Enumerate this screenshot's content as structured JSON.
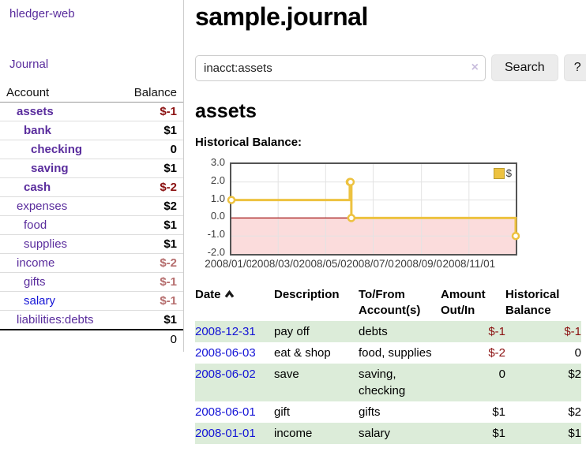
{
  "app": {
    "brand": "hledger-web"
  },
  "sidebar": {
    "journal_label": "Journal",
    "accounts": {
      "header_account": "Account",
      "header_balance": "Balance",
      "rows": [
        {
          "name": "assets",
          "balance": "$-1"
        },
        {
          "name": "bank",
          "balance": "$1"
        },
        {
          "name": "checking",
          "balance": "0"
        },
        {
          "name": "saving",
          "balance": "$1"
        },
        {
          "name": "cash",
          "balance": "$-2"
        },
        {
          "name": "expenses",
          "balance": "$2"
        },
        {
          "name": "food",
          "balance": "$1"
        },
        {
          "name": "supplies",
          "balance": "$1"
        },
        {
          "name": "income",
          "balance": "$-2"
        },
        {
          "name": "gifts",
          "balance": "$-1"
        },
        {
          "name": "salary",
          "balance": "$-1"
        },
        {
          "name": "liabilities:debts",
          "balance": "$1"
        }
      ],
      "total": "0"
    }
  },
  "main": {
    "title": "sample.journal",
    "search": {
      "value": "inacct:assets",
      "clear_icon": "×",
      "search_button": "Search",
      "help_button": "?"
    },
    "account_heading": "assets",
    "chart_label": "Historical Balance:",
    "register": {
      "headers": {
        "date": "Date",
        "description": "Description",
        "tofrom": "To/From Account(s)",
        "amount": "Amount Out/In",
        "balance": "Historical Balance"
      },
      "rows": [
        {
          "date": "2008-12-31",
          "description": "pay off",
          "accounts": "debts",
          "amount": "$-1",
          "balance": "$-1"
        },
        {
          "date": "2008-06-03",
          "description": "eat & shop",
          "accounts": "food, supplies",
          "amount": "$-2",
          "balance": "0"
        },
        {
          "date": "2008-06-02",
          "description": "save",
          "accounts": "saving, checking",
          "amount": "0",
          "balance": "$2"
        },
        {
          "date": "2008-06-01",
          "description": "gift",
          "accounts": "gifts",
          "amount": "$1",
          "balance": "$2"
        },
        {
          "date": "2008-01-01",
          "description": "income",
          "accounts": "salary",
          "amount": "$1",
          "balance": "$1"
        }
      ]
    }
  },
  "chart_data": {
    "type": "line",
    "title": "Historical Balance",
    "legend": "$",
    "step": true,
    "xlim": [
      "2008-01-01",
      "2008-12-31"
    ],
    "ylim": [
      -2,
      3
    ],
    "x_tick_labels": [
      "2008/01/01",
      "2008/03/01",
      "2008/05/01",
      "2008/07/01",
      "2008/09/01",
      "2008/11/01"
    ],
    "x_tick_dates": [
      "2008-01-01",
      "2008-03-01",
      "2008-05-01",
      "2008-07-01",
      "2008-09-01",
      "2008-11-01"
    ],
    "y_ticks": [
      "3.0",
      "2.0",
      "1.0",
      "0.0",
      "-1.0",
      "-2.0"
    ],
    "series": [
      {
        "name": "$",
        "points": [
          [
            "2008-01-01",
            1
          ],
          [
            "2008-06-01",
            2
          ],
          [
            "2008-06-02",
            2
          ],
          [
            "2008-06-03",
            0
          ],
          [
            "2008-12-31",
            -1
          ]
        ]
      }
    ],
    "colors": {
      "line": "#edc240",
      "marker_fill": "#ffffff",
      "negative_fill": "#fbdcdc",
      "zero_line": "#a01010",
      "grid": "#e3e3e3",
      "border": "#545454"
    }
  }
}
